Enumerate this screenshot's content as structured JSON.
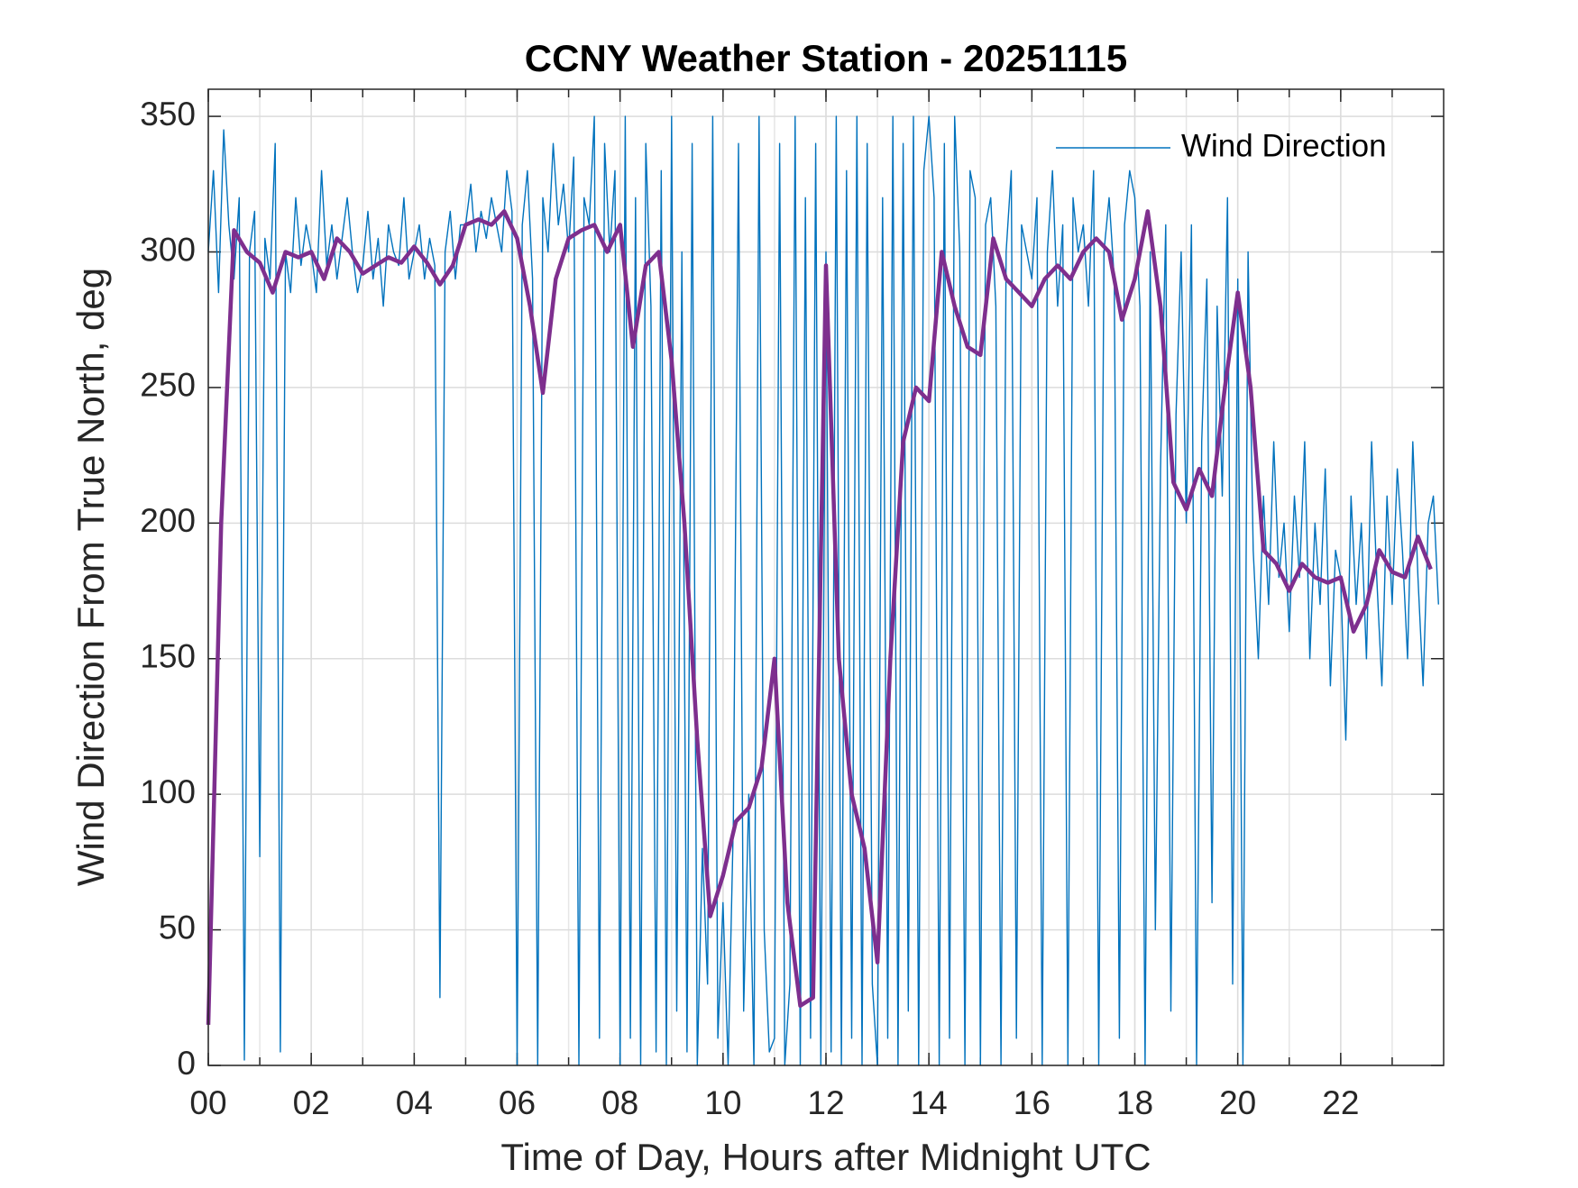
{
  "chart_data": {
    "type": "line",
    "title": "CCNY Weather Station - 20251115",
    "xlabel": "Time of Day, Hours after Midnight UTC",
    "ylabel": "Wind Direction From True North, deg",
    "xlim": [
      0,
      24
    ],
    "ylim": [
      0,
      360
    ],
    "xticks": [
      {
        "value": 0,
        "label": "00"
      },
      {
        "value": 2,
        "label": "02"
      },
      {
        "value": 4,
        "label": "04"
      },
      {
        "value": 6,
        "label": "06"
      },
      {
        "value": 8,
        "label": "08"
      },
      10,
      12,
      14,
      16,
      18,
      20,
      22
    ],
    "yticks": [
      0,
      50,
      100,
      150,
      200,
      250,
      300,
      350
    ],
    "grid": true,
    "x_minor_grid": true,
    "legend": "upper right",
    "series": [
      {
        "name": "Wind Direction",
        "color": "#0072bd",
        "width": 1.4,
        "x": [
          0,
          0.1,
          0.2,
          0.3,
          0.4,
          0.5,
          0.6,
          0.7,
          0.8,
          0.9,
          1,
          1.1,
          1.2,
          1.3,
          1.4,
          1.5,
          1.6,
          1.7,
          1.8,
          1.9,
          2,
          2.1,
          2.2,
          2.3,
          2.4,
          2.5,
          2.6,
          2.7,
          2.8,
          2.9,
          3,
          3.1,
          3.2,
          3.3,
          3.4,
          3.5,
          3.6,
          3.7,
          3.8,
          3.9,
          4,
          4.1,
          4.2,
          4.3,
          4.4,
          4.5,
          4.6,
          4.7,
          4.8,
          4.9,
          5,
          5.1,
          5.2,
          5.3,
          5.4,
          5.5,
          5.6,
          5.7,
          5.8,
          5.9,
          6,
          6.1,
          6.2,
          6.3,
          6.4,
          6.5,
          6.6,
          6.7,
          6.8,
          6.9,
          7,
          7.1,
          7.2,
          7.3,
          7.4,
          7.5,
          7.6,
          7.7,
          7.8,
          7.9,
          8,
          8.1,
          8.2,
          8.3,
          8.4,
          8.5,
          8.6,
          8.7,
          8.8,
          8.9,
          9,
          9.1,
          9.2,
          9.3,
          9.4,
          9.5,
          9.6,
          9.7,
          9.8,
          9.9,
          10,
          10.1,
          10.2,
          10.3,
          10.4,
          10.5,
          10.6,
          10.7,
          10.8,
          10.9,
          11,
          11.1,
          11.2,
          11.3,
          11.4,
          11.5,
          11.6,
          11.7,
          11.8,
          11.9,
          12,
          12.1,
          12.2,
          12.3,
          12.4,
          12.5,
          12.6,
          12.7,
          12.8,
          12.9,
          13,
          13.1,
          13.2,
          13.3,
          13.4,
          13.5,
          13.6,
          13.7,
          13.8,
          13.9,
          14,
          14.1,
          14.2,
          14.3,
          14.4,
          14.5,
          14.6,
          14.7,
          14.8,
          14.9,
          15,
          15.1,
          15.2,
          15.3,
          15.4,
          15.5,
          15.6,
          15.7,
          15.8,
          15.9,
          16,
          16.1,
          16.2,
          16.3,
          16.4,
          16.5,
          16.6,
          16.7,
          16.8,
          16.9,
          17,
          17.1,
          17.2,
          17.3,
          17.4,
          17.5,
          17.6,
          17.7,
          17.8,
          17.9,
          18,
          18.1,
          18.2,
          18.3,
          18.4,
          18.5,
          18.6,
          18.7,
          18.8,
          18.9,
          19,
          19.1,
          19.2,
          19.3,
          19.4,
          19.5,
          19.6,
          19.7,
          19.8,
          19.9,
          20,
          20.1,
          20.2,
          20.3,
          20.4,
          20.5,
          20.6,
          20.7,
          20.8,
          20.9,
          21,
          21.1,
          21.2,
          21.3,
          21.4,
          21.5,
          21.6,
          21.7,
          21.8,
          21.9,
          22,
          22.1,
          22.2,
          22.3,
          22.4,
          22.5,
          22.6,
          22.7,
          22.8,
          22.9,
          23,
          23.1,
          23.2,
          23.3,
          23.4,
          23.5,
          23.6,
          23.7,
          23.8,
          23.9
        ],
        "values": [
          300,
          330,
          285,
          345,
          310,
          290,
          320,
          2,
          300,
          315,
          77,
          305,
          290,
          340,
          5,
          300,
          285,
          320,
          295,
          310,
          300,
          285,
          330,
          295,
          310,
          290,
          305,
          320,
          300,
          285,
          295,
          315,
          290,
          305,
          280,
          310,
          300,
          295,
          320,
          290,
          300,
          310,
          290,
          305,
          295,
          25,
          300,
          315,
          290,
          310,
          310,
          325,
          300,
          315,
          305,
          320,
          310,
          300,
          330,
          315,
          0,
          310,
          330,
          290,
          0,
          320,
          300,
          340,
          310,
          325,
          300,
          335,
          0,
          320,
          310,
          350,
          10,
          340,
          300,
          330,
          0,
          350,
          10,
          320,
          0,
          340,
          280,
          5,
          330,
          0,
          350,
          20,
          300,
          5,
          340,
          0,
          80,
          30,
          350,
          10,
          60,
          0,
          90,
          340,
          20,
          100,
          0,
          350,
          50,
          5,
          10,
          340,
          0,
          30,
          350,
          0,
          320,
          10,
          340,
          0,
          300,
          5,
          350,
          0,
          330,
          10,
          350,
          0,
          340,
          30,
          0,
          320,
          10,
          350,
          0,
          340,
          20,
          350,
          0,
          330,
          350,
          320,
          0,
          340,
          10,
          350,
          300,
          0,
          330,
          320,
          0,
          310,
          320,
          280,
          0,
          300,
          330,
          10,
          310,
          300,
          290,
          320,
          0,
          300,
          330,
          280,
          310,
          0,
          320,
          300,
          310,
          280,
          330,
          0,
          300,
          320,
          290,
          10,
          310,
          330,
          320,
          280,
          0,
          300,
          50,
          220,
          310,
          20,
          240,
          300,
          200,
          310,
          0,
          230,
          290,
          60,
          280,
          210,
          320,
          30,
          290,
          0,
          300,
          190,
          150,
          210,
          170,
          230,
          180,
          200,
          160,
          210,
          180,
          230,
          150,
          200,
          170,
          220,
          140,
          190,
          180,
          120,
          210,
          170,
          200,
          150,
          230,
          180,
          140,
          210,
          170,
          220,
          190,
          150,
          230,
          180,
          140,
          200,
          210,
          170
        ]
      },
      {
        "color": "#7e2f8e",
        "width": 4.5,
        "x": [
          0,
          0.25,
          0.5,
          0.75,
          1,
          1.25,
          1.5,
          1.75,
          2,
          2.25,
          2.5,
          2.75,
          3,
          3.25,
          3.5,
          3.75,
          4,
          4.25,
          4.5,
          4.75,
          5,
          5.25,
          5.5,
          5.75,
          6,
          6.25,
          6.5,
          6.75,
          7,
          7.25,
          7.5,
          7.75,
          8,
          8.25,
          8.5,
          8.75,
          9,
          9.25,
          9.5,
          9.75,
          10,
          10.25,
          10.5,
          10.75,
          11,
          11.25,
          11.5,
          11.75,
          12,
          12.25,
          12.5,
          12.75,
          13,
          13.25,
          13.5,
          13.75,
          14,
          14.25,
          14.5,
          14.75,
          15,
          15.25,
          15.5,
          15.75,
          16,
          16.25,
          16.5,
          16.75,
          17,
          17.25,
          17.5,
          17.75,
          18,
          18.25,
          18.5,
          18.75,
          19,
          19.25,
          19.5,
          19.75,
          20,
          20.25,
          20.5,
          20.75,
          21,
          21.25,
          21.5,
          21.75,
          22,
          22.25,
          22.5,
          22.75,
          23,
          23.25,
          23.5,
          23.75
        ],
        "values": [
          15,
          200,
          308,
          300,
          296,
          285,
          300,
          298,
          300,
          290,
          305,
          300,
          292,
          295,
          298,
          296,
          302,
          296,
          288,
          295,
          310,
          312,
          310,
          315,
          305,
          280,
          248,
          290,
          305,
          308,
          310,
          300,
          310,
          265,
          295,
          300,
          260,
          200,
          120,
          55,
          70,
          90,
          95,
          110,
          150,
          60,
          22,
          25,
          295,
          150,
          100,
          80,
          38,
          150,
          230,
          250,
          245,
          300,
          280,
          265,
          262,
          305,
          290,
          285,
          280,
          290,
          295,
          290,
          300,
          305,
          300,
          275,
          290,
          315,
          280,
          215,
          205,
          220,
          210,
          250,
          285,
          250,
          190,
          185,
          175,
          185,
          180,
          178,
          180,
          160,
          170,
          190,
          182,
          180,
          195,
          183
        ]
      }
    ]
  }
}
